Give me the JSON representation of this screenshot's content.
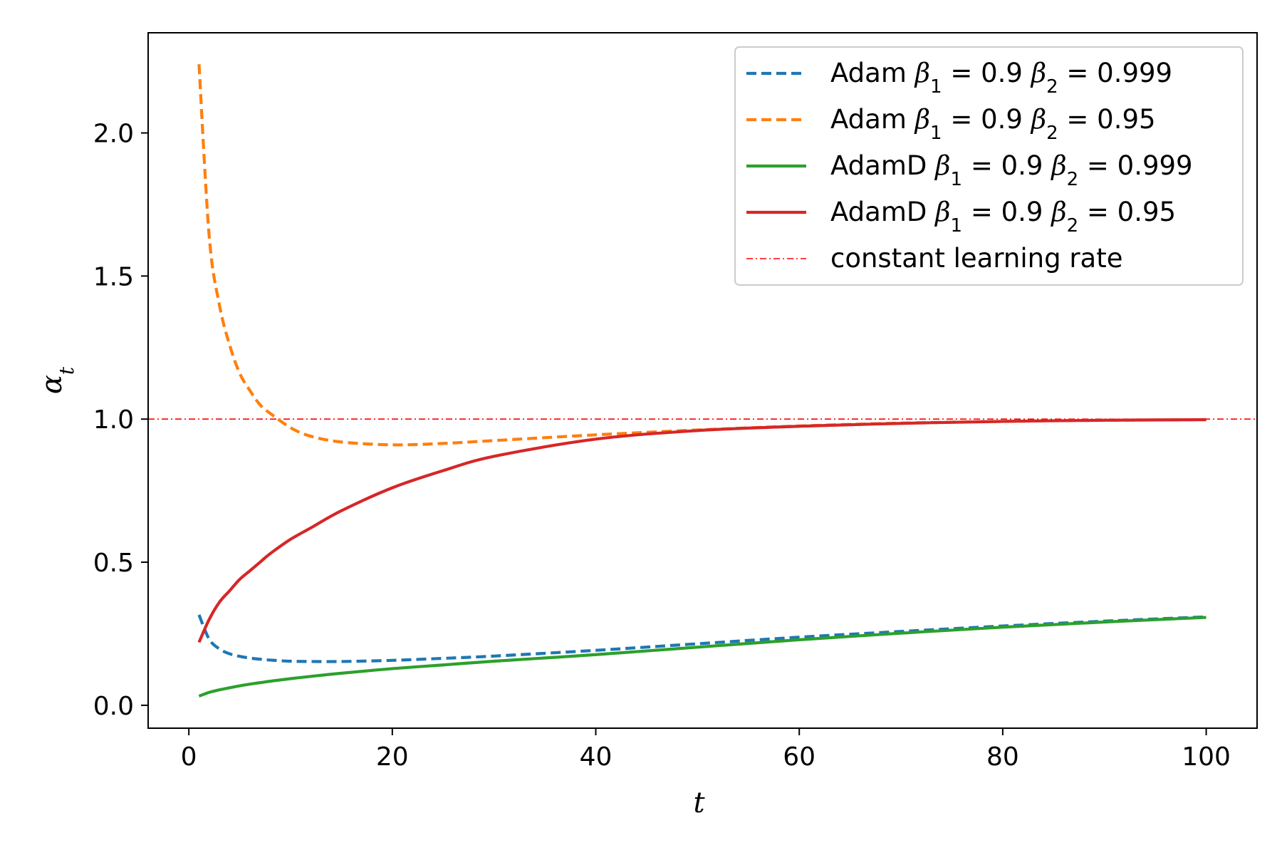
{
  "chart_data": {
    "type": "line",
    "xlabel": "t",
    "ylabel": "α",
    "ylabel_subscript": "t",
    "xlim": [
      -4,
      105
    ],
    "ylim": [
      -0.08,
      2.35
    ],
    "xticks": [
      0,
      20,
      40,
      60,
      80,
      100
    ],
    "xtick_labels": [
      "0",
      "20",
      "40",
      "60",
      "80",
      "100"
    ],
    "yticks": [
      0.0,
      0.5,
      1.0,
      1.5,
      2.0
    ],
    "ytick_labels": [
      "0.0",
      "0.5",
      "1.0",
      "1.5",
      "2.0"
    ],
    "grid": false,
    "legend_position": "top-right",
    "x": [
      1,
      2,
      3,
      4,
      5,
      6,
      7,
      8,
      10,
      12,
      15,
      20,
      25,
      30,
      40,
      50,
      60,
      70,
      80,
      90,
      100
    ],
    "series": [
      {
        "name": "Adam β₁ = 0.9 β₂ = 0.999",
        "legend_name": "Adam",
        "legend_b2": "0.999",
        "color": "#1f77b4",
        "style": "dashed",
        "values": [
          0.316,
          0.231,
          0.197,
          0.18,
          0.171,
          0.165,
          0.161,
          0.158,
          0.154,
          0.153,
          0.153,
          0.157,
          0.164,
          0.172,
          0.192,
          0.215,
          0.238,
          0.258,
          0.277,
          0.294,
          0.309
        ]
      },
      {
        "name": "Adam β₁ = 0.9 β₂ = 0.95",
        "legend_name": "Adam",
        "legend_b2": "0.95",
        "color": "#ff7f0e",
        "style": "dashed",
        "values": [
          2.24,
          1.64,
          1.4,
          1.26,
          1.16,
          1.1,
          1.05,
          1.02,
          0.97,
          0.94,
          0.92,
          0.91,
          0.915,
          0.925,
          0.945,
          0.962,
          0.976,
          0.986,
          0.992,
          0.996,
          0.998
        ]
      },
      {
        "name": "AdamD β₁ = 0.9 β₂ = 0.999",
        "legend_name": "AdamD",
        "legend_b2": "0.999",
        "color": "#2ca02c",
        "style": "solid",
        "values": [
          0.032,
          0.045,
          0.054,
          0.061,
          0.068,
          0.074,
          0.079,
          0.084,
          0.093,
          0.101,
          0.112,
          0.128,
          0.141,
          0.154,
          0.177,
          0.203,
          0.229,
          0.252,
          0.273,
          0.291,
          0.307
        ]
      },
      {
        "name": "AdamD β₁ = 0.9 β₂ = 0.95",
        "legend_name": "AdamD",
        "legend_b2": "0.95",
        "color": "#d62728",
        "style": "solid",
        "values": [
          0.22,
          0.3,
          0.36,
          0.4,
          0.44,
          0.47,
          0.5,
          0.53,
          0.58,
          0.62,
          0.68,
          0.76,
          0.82,
          0.87,
          0.93,
          0.96,
          0.975,
          0.985,
          0.992,
          0.996,
          0.998
        ]
      }
    ],
    "reference_line": {
      "name": "constant learning rate",
      "y": 1.0,
      "color": "#ff0000",
      "style": "dashdot"
    }
  }
}
